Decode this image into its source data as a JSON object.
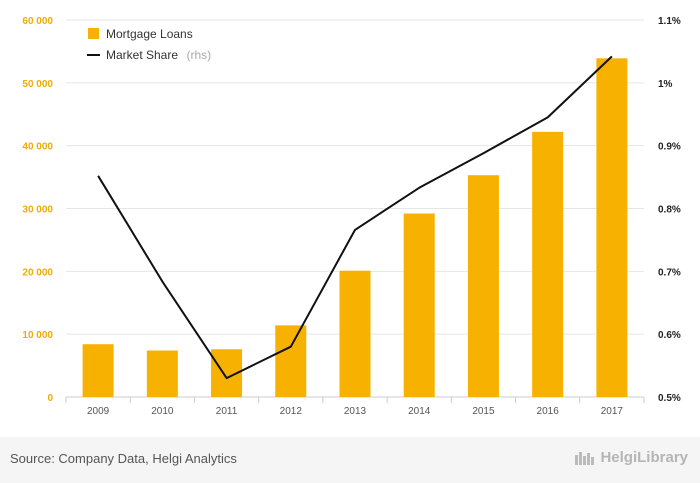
{
  "chart_data": {
    "type": "bar+line",
    "categories": [
      "2009",
      "2010",
      "2011",
      "2012",
      "2013",
      "2014",
      "2015",
      "2016",
      "2017"
    ],
    "series": [
      {
        "name": "Mortgage Loans",
        "type": "bar",
        "axis": "left",
        "color": "#f7b100",
        "values": [
          8400,
          7400,
          7600,
          11400,
          20100,
          29200,
          35300,
          42200,
          53900
        ]
      },
      {
        "name": "Market Share",
        "note": "(rhs)",
        "type": "line",
        "axis": "right",
        "color": "#111111",
        "values": [
          0.852,
          0.684,
          0.53,
          0.58,
          0.766,
          0.833,
          0.888,
          0.945,
          1.042
        ]
      }
    ],
    "left_axis": {
      "ylim": [
        0,
        60000
      ],
      "ticks": [
        0,
        10000,
        20000,
        30000,
        40000,
        50000,
        60000
      ],
      "tick_labels": [
        "0",
        "10 000",
        "20 000",
        "30 000",
        "40 000",
        "50 000",
        "60 000"
      ],
      "color": "#f0ac00"
    },
    "right_axis": {
      "ylim": [
        0.5,
        1.1
      ],
      "ticks": [
        0.5,
        0.6,
        0.7,
        0.8,
        0.9,
        1.0,
        1.1
      ],
      "tick_labels": [
        "0.5%",
        "0.6%",
        "0.7%",
        "0.8%",
        "0.9%",
        "1%",
        "1.1%"
      ],
      "color": "#222222"
    },
    "grid": true,
    "legend_position": "top-left"
  },
  "footer": {
    "source": "Source: Company Data, Helgi Analytics",
    "brand": "HelgiLibrary"
  }
}
